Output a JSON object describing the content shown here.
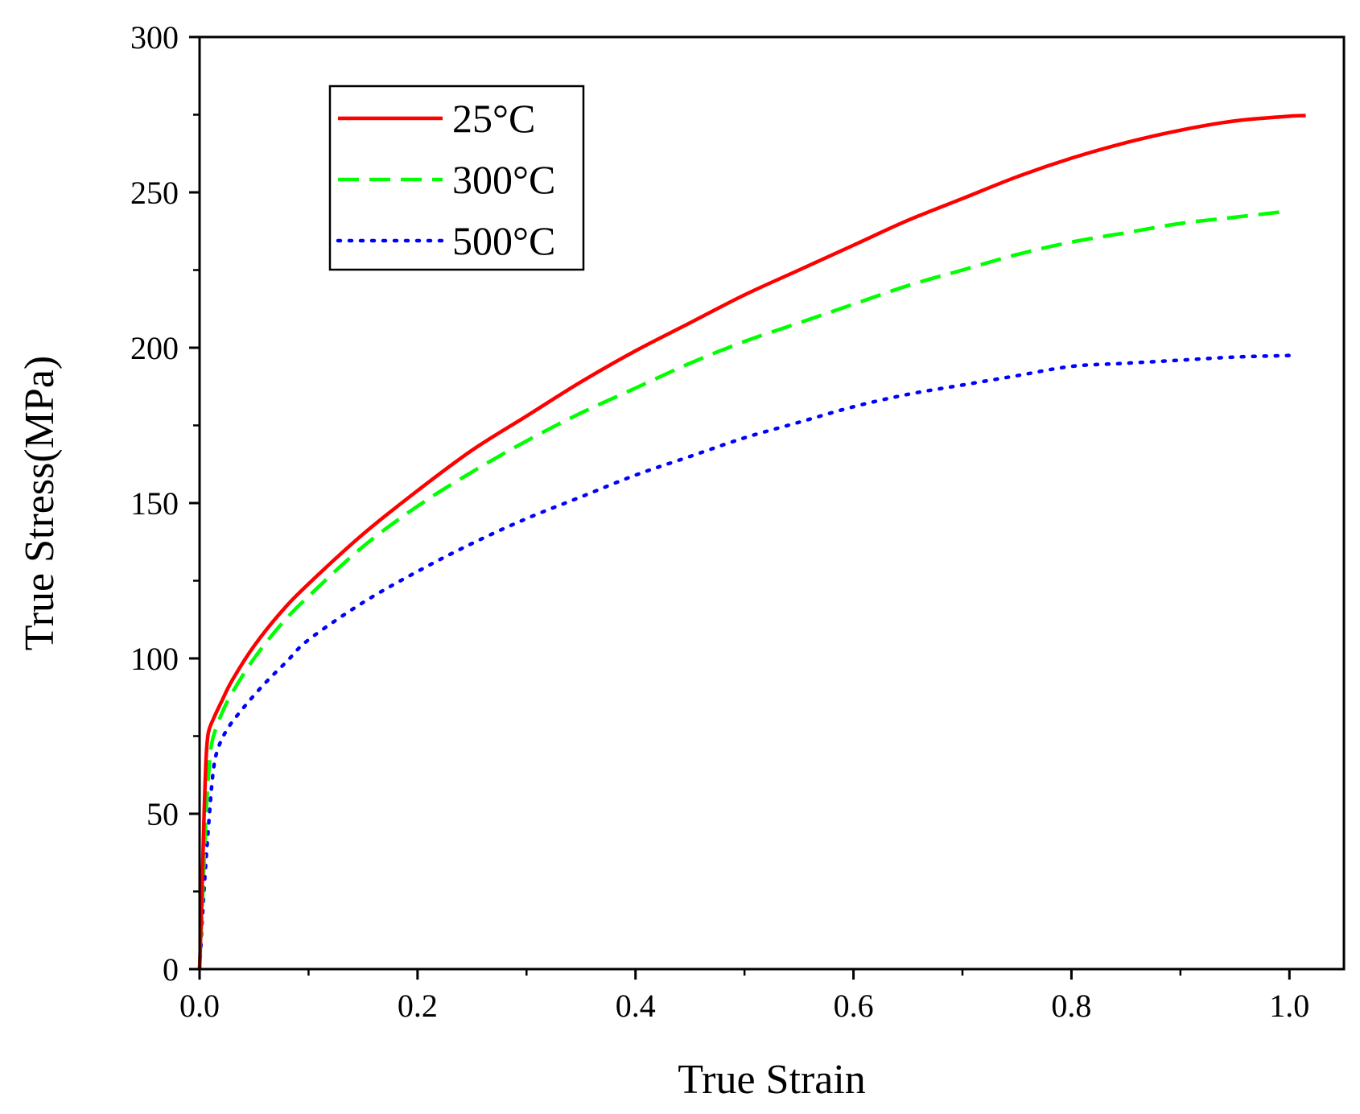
{
  "chart_data": {
    "type": "line",
    "title": "",
    "xlabel": "True Strain",
    "ylabel": "True Stress(MPa)",
    "xlim": [
      0,
      1.05
    ],
    "ylim": [
      0,
      300
    ],
    "xticks": [
      0.0,
      0.2,
      0.4,
      0.6,
      0.8,
      1.0
    ],
    "xtick_labels": [
      "0.0",
      "0.2",
      "0.4",
      "0.6",
      "0.8",
      "1.0"
    ],
    "xminor": [
      0.1,
      0.3,
      0.5,
      0.7,
      0.9
    ],
    "yticks": [
      0,
      50,
      100,
      150,
      200,
      250,
      300
    ],
    "ytick_labels": [
      "0",
      "50",
      "100",
      "150",
      "200",
      "250",
      "300"
    ],
    "yminor": [
      25,
      75,
      125,
      175,
      225,
      275
    ],
    "grid": false,
    "legend_position": "top-left",
    "series": [
      {
        "name": "25°C",
        "color": "#ff0000",
        "style": "solid",
        "x": [
          0,
          0.002,
          0.004,
          0.006,
          0.008,
          0.012,
          0.02,
          0.03,
          0.05,
          0.075,
          0.1,
          0.15,
          0.2,
          0.25,
          0.3,
          0.35,
          0.4,
          0.45,
          0.5,
          0.55,
          0.6,
          0.65,
          0.7,
          0.75,
          0.8,
          0.85,
          0.9,
          0.95,
          1.0,
          1.015
        ],
        "y": [
          0,
          22,
          48,
          68,
          76,
          80,
          86,
          93,
          104,
          115,
          124,
          140,
          154,
          167,
          178,
          189,
          199,
          208,
          217,
          225,
          233,
          241,
          248,
          255,
          261,
          266,
          270,
          273,
          274.5,
          274.7
        ]
      },
      {
        "name": "300°C",
        "color": "#00ff00",
        "style": "dashed",
        "x": [
          0,
          0.003,
          0.006,
          0.009,
          0.012,
          0.02,
          0.03,
          0.05,
          0.075,
          0.1,
          0.15,
          0.2,
          0.25,
          0.3,
          0.35,
          0.4,
          0.45,
          0.5,
          0.55,
          0.6,
          0.65,
          0.7,
          0.75,
          0.8,
          0.85,
          0.9,
          0.95,
          1.0
        ],
        "y": [
          0,
          25,
          50,
          66,
          74,
          82,
          89,
          100,
          111,
          120,
          136,
          149,
          160,
          170,
          179,
          187,
          195,
          202,
          208,
          214,
          220,
          225,
          230,
          234,
          237,
          240,
          242,
          244
        ]
      },
      {
        "name": "500°C",
        "color": "#0000ff",
        "style": "dotted",
        "x": [
          0,
          0.004,
          0.008,
          0.012,
          0.016,
          0.025,
          0.04,
          0.06,
          0.08,
          0.1,
          0.15,
          0.2,
          0.25,
          0.3,
          0.35,
          0.4,
          0.45,
          0.5,
          0.55,
          0.6,
          0.65,
          0.7,
          0.75,
          0.8,
          0.85,
          0.9,
          0.95,
          1.0
        ],
        "y": [
          0,
          25,
          45,
          62,
          70,
          77,
          84,
          92,
          99,
          106,
          118,
          128,
          137,
          145,
          152,
          159,
          165,
          171,
          176,
          181,
          185,
          188,
          191,
          194,
          195,
          196,
          197,
          197.5
        ]
      }
    ]
  }
}
